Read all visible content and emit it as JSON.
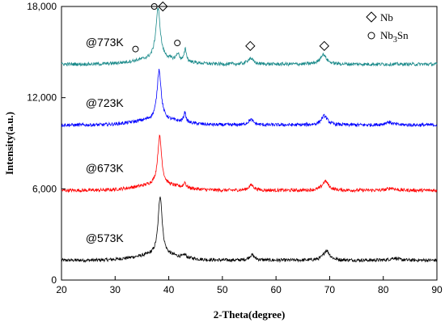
{
  "chart_data": {
    "type": "line",
    "title": "",
    "xlabel": "2-Theta(degree)",
    "ylabel": "Intensity(a.u.)",
    "xlim": [
      20,
      90
    ],
    "ylim": [
      0,
      18000
    ],
    "x_ticks": [
      "20",
      "30",
      "40",
      "50",
      "60",
      "70",
      "80",
      "90"
    ],
    "y_ticks": [
      "0",
      "6,000",
      "12,000",
      "18,000"
    ],
    "legend": {
      "position": "top-right",
      "entries": [
        {
          "symbol": "diamond",
          "label": "Nb"
        },
        {
          "symbol": "circle",
          "label": "Nb",
          "sub": "3",
          "suffix": "Sn"
        }
      ]
    },
    "series": [
      {
        "name": "@573K",
        "color": "#000000",
        "baseline": 1300,
        "peaks": [
          {
            "x": 38.4,
            "height": 3900,
            "width": 0.45
          },
          {
            "x": 43.0,
            "height": 200,
            "width": 0.25
          },
          {
            "x": 55.5,
            "height": 350,
            "width": 0.6
          },
          {
            "x": 69.4,
            "height": 650,
            "width": 0.7
          },
          {
            "x": 82.0,
            "height": 150,
            "width": 0.8
          }
        ]
      },
      {
        "name": "@673K",
        "color": "#ff0000",
        "baseline": 5900,
        "peaks": [
          {
            "x": 38.3,
            "height": 3200,
            "width": 0.45
          },
          {
            "x": 43.0,
            "height": 350,
            "width": 0.25
          },
          {
            "x": 55.4,
            "height": 350,
            "width": 0.6
          },
          {
            "x": 69.2,
            "height": 600,
            "width": 0.7
          },
          {
            "x": 81.5,
            "height": 150,
            "width": 0.8
          }
        ]
      },
      {
        "name": "@723K",
        "color": "#0000ff",
        "baseline": 10200,
        "peaks": [
          {
            "x": 38.2,
            "height": 3300,
            "width": 0.45
          },
          {
            "x": 43.0,
            "height": 650,
            "width": 0.25
          },
          {
            "x": 55.3,
            "height": 350,
            "width": 0.6
          },
          {
            "x": 69.0,
            "height": 600,
            "width": 0.7
          },
          {
            "x": 81.0,
            "height": 200,
            "width": 0.8
          }
        ]
      },
      {
        "name": "@773K",
        "color": "#1a8a8a",
        "baseline": 14200,
        "peaks": [
          {
            "x": 38.0,
            "height": 3300,
            "width": 0.5
          },
          {
            "x": 41.7,
            "height": 450,
            "width": 0.3
          },
          {
            "x": 43.1,
            "height": 800,
            "width": 0.25
          },
          {
            "x": 55.2,
            "height": 400,
            "width": 0.6
          },
          {
            "x": 68.8,
            "height": 650,
            "width": 0.7
          }
        ]
      }
    ],
    "markers": [
      {
        "symbol": "circle",
        "x": 37.3,
        "y": 18000
      },
      {
        "symbol": "diamond",
        "x": 38.9,
        "y": 18000
      },
      {
        "symbol": "circle",
        "x": 41.6,
        "y": 15600
      },
      {
        "symbol": "diamond",
        "x": 55.2,
        "y": 15400
      },
      {
        "symbol": "diamond",
        "x": 69.0,
        "y": 15400
      },
      {
        "symbol": "circle",
        "x": 33.8,
        "y": 15200
      }
    ]
  }
}
